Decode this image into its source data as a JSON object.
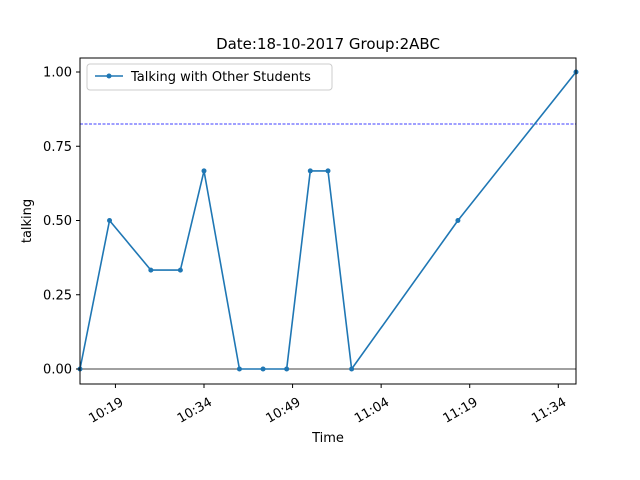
{
  "chart_data": {
    "type": "line",
    "title": "Date:18-10-2017  Group:2ABC",
    "xlabel": "Time",
    "ylabel": "talking",
    "x_ticks": [
      "10:19",
      "10:34",
      "10:49",
      "11:04",
      "11:19",
      "11:34"
    ],
    "y_ticks": [
      "0.00",
      "0.25",
      "0.50",
      "0.75",
      "1.00"
    ],
    "ylim": [
      -0.05,
      1.0
    ],
    "legend": {
      "placement": "top-left"
    },
    "series": [
      {
        "name": "Talking with Other Students",
        "color": "#1f77b4",
        "marker": "point",
        "points": [
          {
            "x": "10:13",
            "y": 0.0
          },
          {
            "x": "10:18",
            "y": 0.5
          },
          {
            "x": "10:25",
            "y": 0.333
          },
          {
            "x": "10:30",
            "y": 0.333
          },
          {
            "x": "10:34",
            "y": 0.667
          },
          {
            "x": "10:40",
            "y": 0.0
          },
          {
            "x": "10:44",
            "y": 0.0
          },
          {
            "x": "10:48",
            "y": 0.0
          },
          {
            "x": "10:52",
            "y": 0.667
          },
          {
            "x": "10:55",
            "y": 0.667
          },
          {
            "x": "10:59",
            "y": 0.0
          },
          {
            "x": "11:17",
            "y": 0.5
          },
          {
            "x": "11:37",
            "y": 1.0
          }
        ]
      }
    ],
    "reference_lines": [
      {
        "orientation": "horizontal",
        "y": 0.825,
        "style": "dashed",
        "color": "#0000ff"
      },
      {
        "orientation": "horizontal",
        "y": 0.0,
        "style": "solid",
        "color": "#000000"
      }
    ]
  }
}
